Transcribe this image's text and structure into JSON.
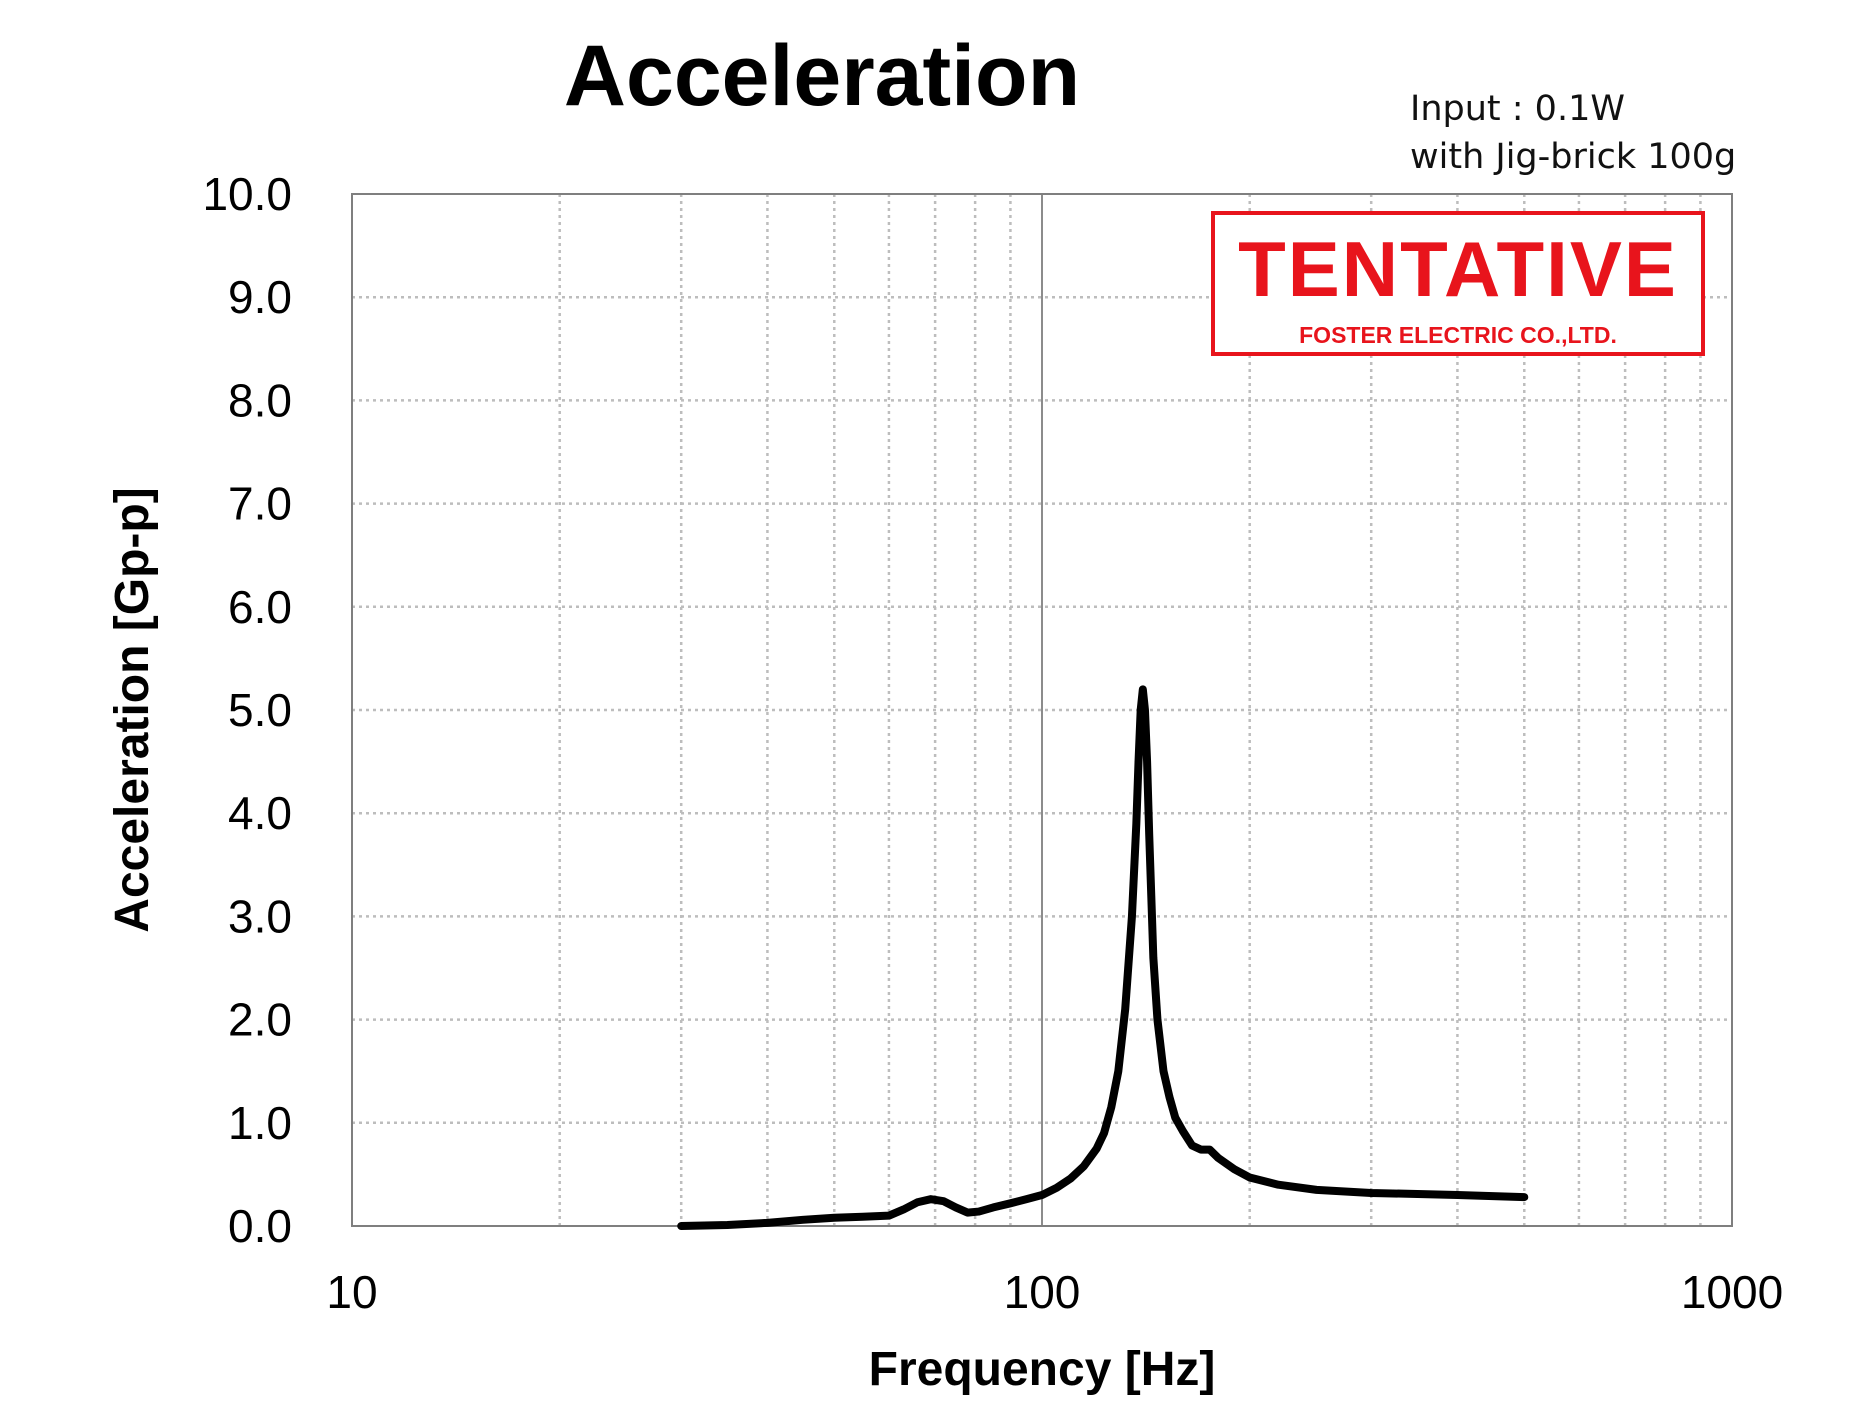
{
  "chart_data": {
    "type": "line",
    "title": "Acceleration",
    "xlabel": "Frequency [Hz]",
    "ylabel": "Acceleration [Gp-p]",
    "x_scale": "log",
    "xlim": [
      10,
      1000
    ],
    "ylim": [
      0,
      10
    ],
    "x_ticks": [
      "10",
      "100",
      "1000"
    ],
    "y_ticks": [
      "0.0",
      "1.0",
      "2.0",
      "3.0",
      "4.0",
      "5.0",
      "6.0",
      "7.0",
      "8.0",
      "9.0",
      "10.0"
    ],
    "grid": true,
    "legend": "none",
    "annotations": [
      "Input : 0.1W",
      "with Jig-brick 100g"
    ],
    "stamp": {
      "text": "TENTATIVE",
      "subtext": "FOSTER ELECTRIC CO.,LTD.",
      "color": "#e8141c"
    },
    "series": [
      {
        "color": "#000000",
        "x": [
          30,
          35,
          40,
          45,
          50,
          55,
          60,
          63,
          66,
          69,
          72,
          75,
          78,
          81,
          85,
          90,
          95,
          100,
          105,
          110,
          115,
          120,
          123,
          126,
          129,
          132,
          135,
          137,
          138,
          139,
          140,
          141,
          142,
          143,
          144,
          145,
          147,
          150,
          153,
          156,
          160,
          165,
          170,
          175,
          180,
          190,
          200,
          220,
          250,
          300,
          350,
          400,
          450,
          500
        ],
        "y": [
          0.0,
          0.01,
          0.03,
          0.06,
          0.08,
          0.09,
          0.1,
          0.16,
          0.23,
          0.26,
          0.24,
          0.18,
          0.13,
          0.14,
          0.18,
          0.22,
          0.26,
          0.3,
          0.37,
          0.46,
          0.58,
          0.75,
          0.9,
          1.15,
          1.5,
          2.1,
          3.0,
          3.9,
          4.5,
          5.0,
          5.2,
          5.0,
          4.5,
          3.8,
          3.2,
          2.6,
          2.0,
          1.5,
          1.25,
          1.05,
          0.92,
          0.78,
          0.74,
          0.74,
          0.66,
          0.55,
          0.47,
          0.4,
          0.35,
          0.32,
          0.31,
          0.3,
          0.29,
          0.28
        ]
      }
    ]
  }
}
